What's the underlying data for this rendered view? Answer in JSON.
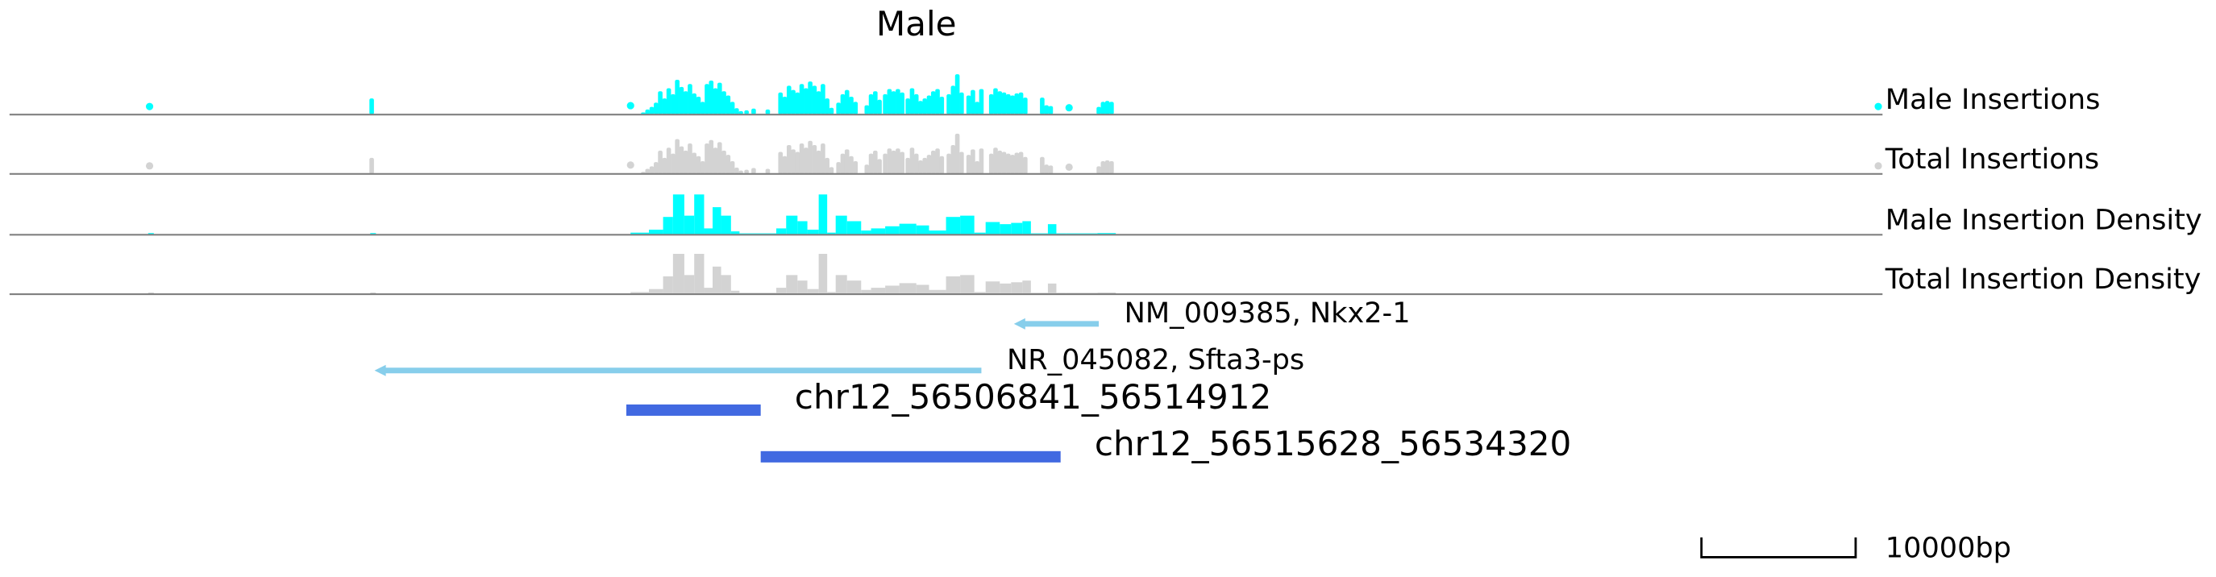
{
  "title": "Male",
  "colors": {
    "male": "#00FFFF",
    "total": "#D3D3D3",
    "gene": "#87CEEB",
    "region": "#4169E1",
    "baseline": "#808080"
  },
  "chart_data": {
    "type": "genome_tracks",
    "tracks": [
      {
        "label": "Male Insertions",
        "kind": "insertions",
        "color": "male"
      },
      {
        "label": "Total Insertions",
        "kind": "insertions",
        "color": "total"
      },
      {
        "label": "Male Insertion Density",
        "kind": "density",
        "color": "male"
      },
      {
        "label": "Total Insertion Density",
        "kind": "density",
        "color": "total"
      }
    ],
    "insertion_points": [
      [
        105,
        0.18
      ],
      [
        262,
        0.38
      ],
      [
        445,
        0.22
      ],
      [
        454,
        0.05
      ],
      [
        457,
        0.12
      ],
      [
        460,
        0.18
      ],
      [
        463,
        0.28
      ],
      [
        466,
        0.55
      ],
      [
        469,
        0.38
      ],
      [
        472,
        0.62
      ],
      [
        475,
        0.48
      ],
      [
        478,
        0.82
      ],
      [
        481,
        0.65
      ],
      [
        484,
        0.55
      ],
      [
        487,
        0.72
      ],
      [
        490,
        0.5
      ],
      [
        493,
        0.42
      ],
      [
        496,
        0.3
      ],
      [
        499,
        0.72
      ],
      [
        502,
        0.8
      ],
      [
        505,
        0.62
      ],
      [
        508,
        0.75
      ],
      [
        511,
        0.55
      ],
      [
        514,
        0.45
      ],
      [
        517,
        0.3
      ],
      [
        520,
        0.15
      ],
      [
        523,
        0.08
      ],
      [
        527,
        0.1
      ],
      [
        532,
        0.14
      ],
      [
        542,
        0.12
      ],
      [
        551,
        0.52
      ],
      [
        554,
        0.42
      ],
      [
        557,
        0.68
      ],
      [
        560,
        0.58
      ],
      [
        563,
        0.52
      ],
      [
        566,
        0.72
      ],
      [
        569,
        0.62
      ],
      [
        572,
        0.78
      ],
      [
        575,
        0.68
      ],
      [
        578,
        0.55
      ],
      [
        581,
        0.72
      ],
      [
        584,
        0.38
      ],
      [
        587,
        0.16
      ],
      [
        592,
        0.28
      ],
      [
        595,
        0.48
      ],
      [
        598,
        0.58
      ],
      [
        601,
        0.42
      ],
      [
        604,
        0.3
      ],
      [
        612,
        0.22
      ],
      [
        615,
        0.48
      ],
      [
        618,
        0.55
      ],
      [
        621,
        0.35
      ],
      [
        625,
        0.48
      ],
      [
        628,
        0.6
      ],
      [
        631,
        0.55
      ],
      [
        634,
        0.6
      ],
      [
        637,
        0.52
      ],
      [
        641,
        0.38
      ],
      [
        644,
        0.62
      ],
      [
        647,
        0.48
      ],
      [
        650,
        0.32
      ],
      [
        653,
        0.38
      ],
      [
        656,
        0.45
      ],
      [
        659,
        0.55
      ],
      [
        662,
        0.6
      ],
      [
        665,
        0.42
      ],
      [
        670,
        0.48
      ],
      [
        673,
        0.68
      ],
      [
        676,
        0.95
      ],
      [
        679,
        0.52
      ],
      [
        684,
        0.45
      ],
      [
        687,
        0.58
      ],
      [
        690,
        0.3
      ],
      [
        693,
        0.6
      ],
      [
        700,
        0.48
      ],
      [
        703,
        0.62
      ],
      [
        706,
        0.55
      ],
      [
        709,
        0.52
      ],
      [
        712,
        0.48
      ],
      [
        715,
        0.45
      ],
      [
        718,
        0.5
      ],
      [
        721,
        0.52
      ],
      [
        724,
        0.4
      ],
      [
        736,
        0.4
      ],
      [
        739,
        0.22
      ],
      [
        742,
        0.2
      ],
      [
        755,
        0.12
      ],
      [
        776,
        0.18
      ],
      [
        779,
        0.3
      ],
      [
        782,
        0.32
      ],
      [
        785,
        0.3
      ],
      [
        1327,
        0.18
      ]
    ],
    "density_bars": [
      [
        104,
        108,
        0.04
      ],
      [
        261,
        265,
        0.04
      ],
      [
        445,
        458,
        0.05
      ],
      [
        458,
        468,
        0.12
      ],
      [
        468,
        475,
        0.42
      ],
      [
        475,
        483,
        0.95
      ],
      [
        483,
        490,
        0.45
      ],
      [
        490,
        497,
        0.95
      ],
      [
        497,
        503,
        0.15
      ],
      [
        503,
        509,
        0.65
      ],
      [
        509,
        516,
        0.45
      ],
      [
        516,
        522,
        0.08
      ],
      [
        522,
        548,
        0.02
      ],
      [
        548,
        555,
        0.15
      ],
      [
        555,
        563,
        0.45
      ],
      [
        563,
        570,
        0.32
      ],
      [
        570,
        578,
        0.12
      ],
      [
        578,
        584,
        0.95
      ],
      [
        584,
        590,
        0.05
      ],
      [
        590,
        598,
        0.45
      ],
      [
        598,
        608,
        0.32
      ],
      [
        608,
        615,
        0.1
      ],
      [
        615,
        625,
        0.15
      ],
      [
        625,
        635,
        0.2
      ],
      [
        635,
        647,
        0.26
      ],
      [
        647,
        656,
        0.22
      ],
      [
        656,
        668,
        0.1
      ],
      [
        668,
        678,
        0.42
      ],
      [
        678,
        688,
        0.45
      ],
      [
        688,
        696,
        0.05
      ],
      [
        696,
        706,
        0.3
      ],
      [
        706,
        714,
        0.25
      ],
      [
        714,
        722,
        0.28
      ],
      [
        722,
        728,
        0.32
      ],
      [
        728,
        740,
        0.02
      ],
      [
        740,
        746,
        0.25
      ],
      [
        746,
        753,
        0.02
      ],
      [
        753,
        762,
        0.02
      ],
      [
        762,
        775,
        0.02
      ],
      [
        775,
        788,
        0.04
      ]
    ],
    "genes": [
      {
        "start": 716,
        "end": 776,
        "strand": "-",
        "label": "NM_009385, Nkx2-1"
      },
      {
        "start": 264,
        "end": 693,
        "strand": "-",
        "label": "NR_045082, Sfta3-ps"
      }
    ],
    "regions": [
      {
        "start": 442,
        "end": 537,
        "label": "chr12_56506841_56514912"
      },
      {
        "start": 537,
        "end": 749,
        "label": "chr12_56515628_56534320"
      }
    ],
    "scale_bar": {
      "label": "10000bp"
    }
  }
}
